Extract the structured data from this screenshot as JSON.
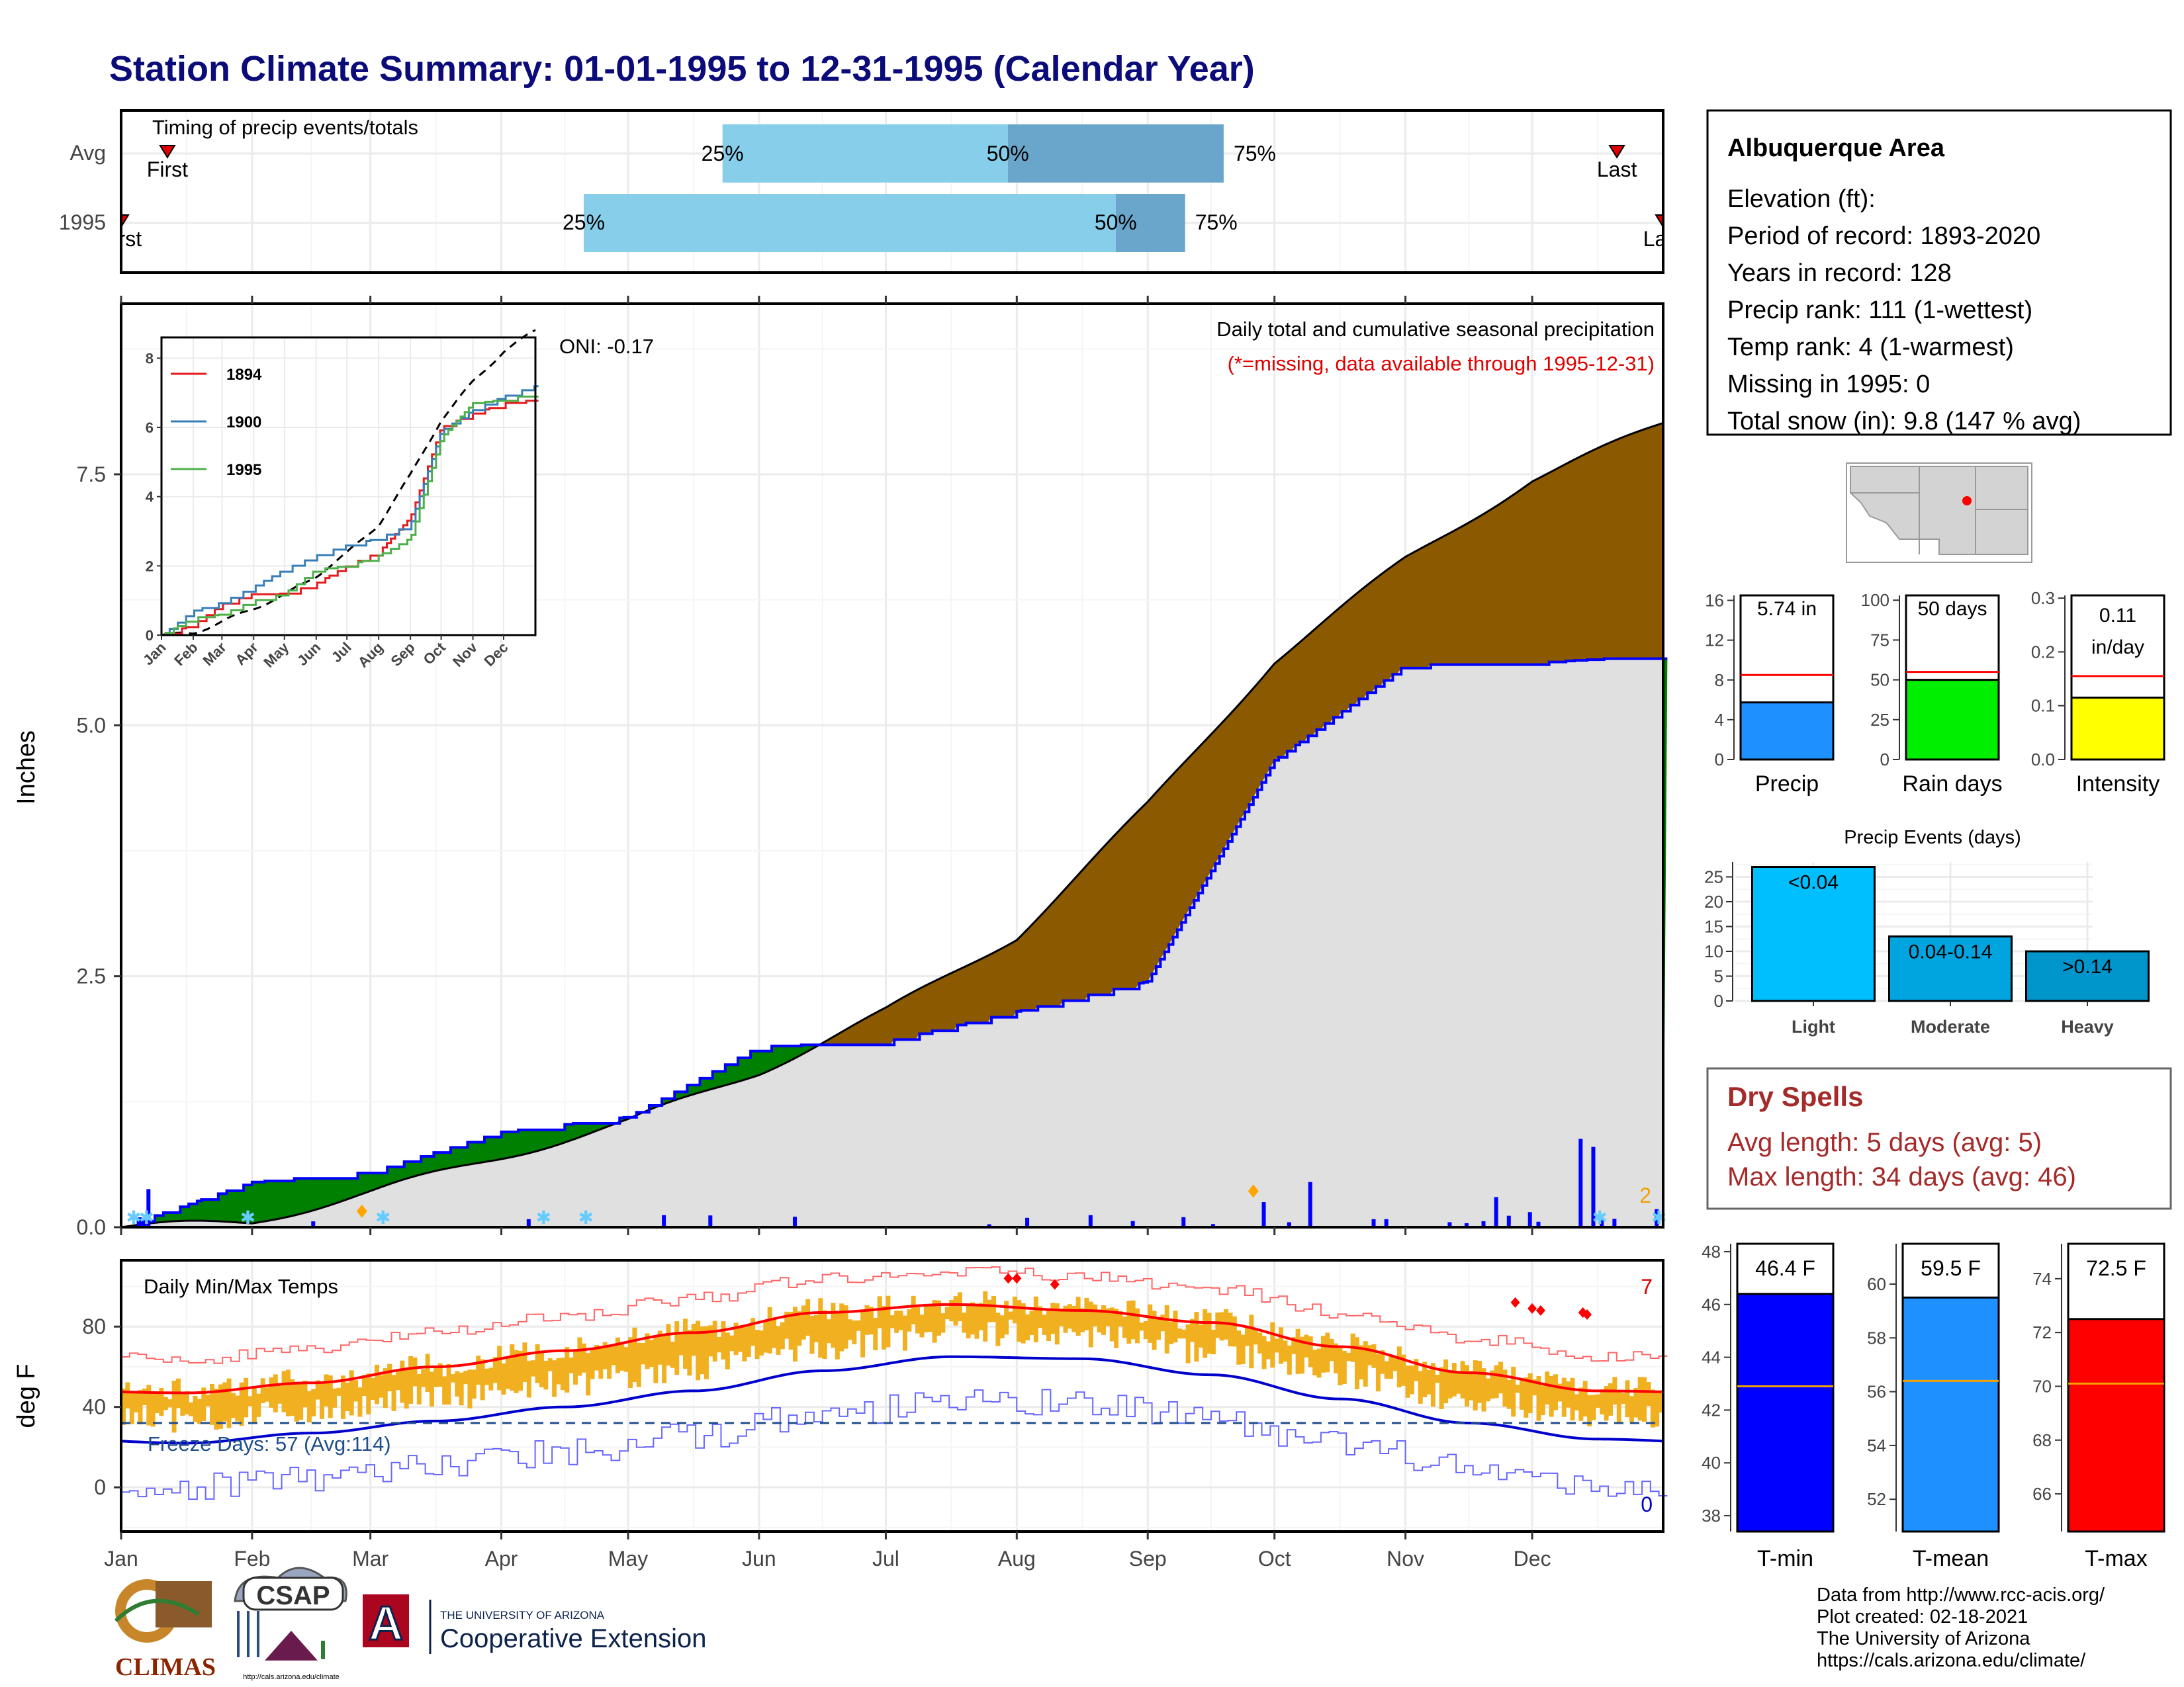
{
  "page": {
    "title": "Station Climate Summary: 01-01-1995 to 12-31-1995 (Calendar Year)"
  },
  "colors": {
    "title": "#0b0b7a",
    "avg_bar": "#87ceeb",
    "mid_bar": "#6aa6cc",
    "surplus": "#008000",
    "deficit": "#8b5a00",
    "cum_line": "#0000ff",
    "cum_fill": "#e0e0e0",
    "tmax_band": "#f0b020",
    "tmax_avg": "#ff0000",
    "tmin_avg": "#0000cc",
    "freeze_line": "#1f4e8c",
    "dry_spells": "#a52a2a"
  },
  "months": [
    "Jan",
    "Feb",
    "Mar",
    "Apr",
    "May",
    "Jun",
    "Jul",
    "Aug",
    "Sep",
    "Oct",
    "Nov",
    "Dec"
  ],
  "timing": {
    "title": "Timing of precip events/totals",
    "rows": [
      "Avg",
      "1995"
    ],
    "avg": {
      "first_label": "First",
      "last_label": "Last",
      "p25": "25%",
      "p50": "50%",
      "p75": "75%",
      "first": 0.03,
      "last": 0.97,
      "q25": 0.39,
      "q50": 0.575,
      "q75": 0.715
    },
    "year": {
      "first_label": "First",
      "last_label": "Last",
      "p25": "25%",
      "p50": "50%",
      "p75": "75%",
      "first": 0.0,
      "last": 1.0,
      "q25": 0.3,
      "q50": 0.645,
      "q75": 0.69
    }
  },
  "precip_panel": {
    "ylabel": "Inches",
    "yticks": [
      "0.0",
      "2.5",
      "5.0",
      "7.5"
    ],
    "caption": "Daily total and cumulative seasonal precipitation",
    "missing_note": "(*=missing, data available through 1995-12-31)",
    "oni": "ONI: -0.17",
    "count_label": "2",
    "ymax": 9.2
  },
  "inset": {
    "yticks": [
      "0",
      "2",
      "4",
      "6",
      "8"
    ],
    "months": [
      "Jan",
      "Feb",
      "Mar",
      "Apr",
      "May",
      "Jun",
      "Jul",
      "Aug",
      "Sep",
      "Oct",
      "Nov",
      "Dec"
    ],
    "legend": [
      {
        "name": "1894",
        "color": "#e41a1c"
      },
      {
        "name": "1900",
        "color": "#377eb8"
      },
      {
        "name": "1995",
        "color": "#4daf4a"
      }
    ]
  },
  "temp_panel": {
    "ylabel": "deg F",
    "title": "Daily Min/Max Temps",
    "yticks": [
      "0",
      "40",
      "80"
    ],
    "freeze_text": "Freeze Days: 57 (Avg:114)",
    "count_high": "7",
    "count_low": "0"
  },
  "station": {
    "name": "Albuquerque Area",
    "lines": [
      "Elevation (ft):",
      "Period of record: 1893-2020",
      "Years in record: 128",
      "Precip rank: 111 (1-wettest)",
      "Temp rank: 4 (1-warmest)",
      "Missing in 1995: 0",
      "Total snow (in): 9.8 (147 % avg)"
    ]
  },
  "mini_bars": [
    {
      "label": "Precip",
      "value_text": "5.74 in",
      "value": 5.74,
      "avg": 8.5,
      "ymax": 16.5,
      "ticks": [
        "0",
        "4",
        "8",
        "12",
        "16"
      ],
      "tickvals": [
        0,
        4,
        8,
        12,
        16
      ],
      "color": "#1e90ff"
    },
    {
      "label": "Rain days",
      "value_text": "50 days",
      "value": 50,
      "avg": 55,
      "ymax": 103,
      "ticks": [
        "0",
        "25",
        "50",
        "75",
        "100"
      ],
      "tickvals": [
        0,
        25,
        50,
        75,
        100
      ],
      "color": "#00ee00"
    },
    {
      "label": "Intensity",
      "value_text": "0.11 in/day",
      "value": 0.115,
      "avg": 0.155,
      "ymax": 0.305,
      "ticks": [
        "0.0",
        "0.1",
        "0.2",
        "0.3"
      ],
      "tickvals": [
        0,
        0.1,
        0.2,
        0.3
      ],
      "color": "#ffff00"
    }
  ],
  "events": {
    "title": "Precip Events (days)",
    "yticks": [
      "0",
      "5",
      "10",
      "15",
      "20",
      "25"
    ],
    "bars": [
      {
        "label": "Light",
        "tag": "<0.04",
        "value": 27,
        "color": "#00bfff"
      },
      {
        "label": "Moderate",
        "tag": "0.04-0.14",
        "value": 13,
        "color": "#00a5e0"
      },
      {
        "label": "Heavy",
        "tag": ">0.14",
        "value": 10,
        "color": "#0096cc"
      }
    ]
  },
  "dry_spells": {
    "title": "Dry Spells",
    "avg_line": "Avg length: 5 days (avg: 5)",
    "max_line": "Max length: 34 days (avg: 46)"
  },
  "temp_bars": [
    {
      "label": "T-min",
      "value_text": "46.4 F",
      "value": 46.4,
      "avg": 42.9,
      "ymin": 37.4,
      "ymax": 48.3,
      "ticks": [
        "38",
        "40",
        "42",
        "44",
        "46",
        "48"
      ],
      "tickvals": [
        38,
        40,
        42,
        44,
        46,
        48
      ],
      "color": "#0000ff"
    },
    {
      "label": "T-mean",
      "value_text": "59.5 F",
      "value": 59.5,
      "avg": 56.4,
      "ymin": 50.8,
      "ymax": 61.5,
      "ticks": [
        "52",
        "54",
        "56",
        "58",
        "60"
      ],
      "tickvals": [
        52,
        54,
        56,
        58,
        60
      ],
      "color": "#1e90ff"
    },
    {
      "label": "T-max",
      "value_text": "72.5 F",
      "value": 72.5,
      "avg": 70.1,
      "ymin": 64.6,
      "ymax": 75.3,
      "ticks": [
        "66",
        "68",
        "70",
        "72",
        "74"
      ],
      "tickvals": [
        66,
        68,
        70,
        72,
        74
      ],
      "color": "#ff0000"
    }
  ],
  "credits": [
    "Data from http://www.rcc-acis.org/",
    "Plot created: 02-18-2021",
    "The University of Arizona",
    "https://cals.arizona.edu/climate/"
  ],
  "logos": {
    "climas": "CLIMAS",
    "csap": "CSAP",
    "csap_url": "http://cals.arizona.edu/climate",
    "ua_top": "THE UNIVERSITY OF ARIZONA",
    "ua_bottom": "Cooperative Extension",
    "ua_letter": "A"
  },
  "chart_data": [
    {
      "type": "bar",
      "title": "Timing of precip events/totals",
      "categories": [
        "Avg",
        "1995"
      ],
      "series": [
        {
          "name": "25%",
          "values": [
            0.39,
            0.3
          ]
        },
        {
          "name": "50%",
          "values": [
            0.575,
            0.645
          ]
        },
        {
          "name": "75%",
          "values": [
            0.715,
            0.69
          ]
        }
      ]
    },
    {
      "type": "area",
      "title": "Daily total and cumulative seasonal precipitation",
      "ylabel": "Inches",
      "ylim": [
        0,
        9.2
      ],
      "x": [
        "Jan",
        "Feb",
        "Mar",
        "Apr",
        "May",
        "Jun",
        "Jul",
        "Aug",
        "Sep",
        "Oct",
        "Nov",
        "Dec"
      ],
      "series": [
        {
          "name": "1995 cumulative",
          "values": [
            0.45,
            0.55,
            0.95,
            1.1,
            1.8,
            1.85,
            2.15,
            2.45,
            4.65,
            5.6,
            5.62,
            5.7
          ]
        },
        {
          "name": "average cumulative",
          "values": [
            0.05,
            0.35,
            0.7,
            1.05,
            1.55,
            2.15,
            2.9,
            4.2,
            5.65,
            6.65,
            7.45,
            8.0
          ]
        }
      ]
    },
    {
      "type": "line",
      "title": "Daily Min/Max Temps",
      "ylabel": "deg F",
      "x": [
        "Jan",
        "Feb",
        "Mar",
        "Apr",
        "May",
        "Jun",
        "Jul",
        "Aug",
        "Sep",
        "Oct",
        "Nov",
        "Dec"
      ],
      "series": [
        {
          "name": "avg max",
          "values": [
            47,
            52,
            60,
            68,
            77,
            87,
            91,
            88,
            82,
            70,
            57,
            48
          ]
        },
        {
          "name": "avg min",
          "values": [
            22,
            27,
            33,
            40,
            48,
            58,
            65,
            64,
            56,
            44,
            32,
            24
          ]
        }
      ]
    },
    {
      "type": "bar",
      "title": "Precip Events (days)",
      "categories": [
        "Light",
        "Moderate",
        "Heavy"
      ],
      "values": [
        27,
        13,
        10
      ]
    }
  ]
}
